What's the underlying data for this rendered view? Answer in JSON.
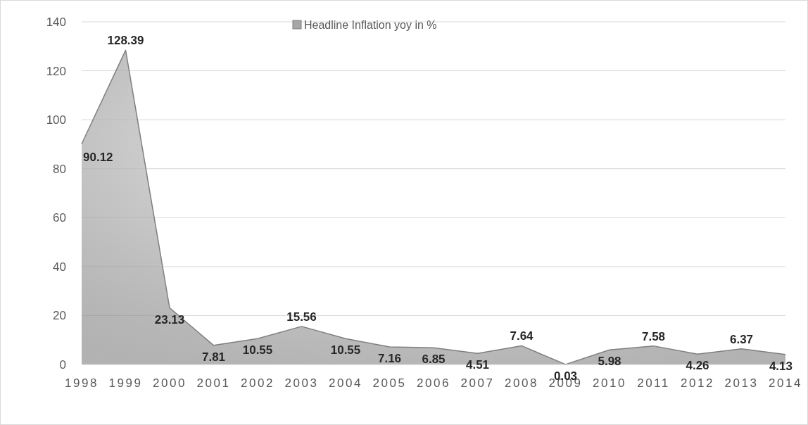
{
  "chart_data": {
    "type": "area",
    "categories": [
      "1998",
      "1999",
      "2000",
      "2001",
      "2002",
      "2003",
      "2004",
      "2005",
      "2006",
      "2007",
      "2008",
      "2009",
      "2010",
      "2011",
      "2012",
      "2013",
      "2014"
    ],
    "series": [
      {
        "name": "Headline Inflation yoy in %",
        "color": "#7f7f7f",
        "values": [
          90.12,
          128.39,
          23.13,
          7.81,
          10.55,
          15.56,
          10.55,
          7.16,
          6.85,
          4.51,
          7.64,
          0.03,
          5.98,
          7.58,
          4.26,
          6.37,
          4.13
        ]
      }
    ],
    "ylim": [
      0,
      140
    ],
    "yticks": [
      0,
      20,
      40,
      60,
      80,
      100,
      120,
      140
    ],
    "grid": "y",
    "legend": "top",
    "data_labels": true
  }
}
